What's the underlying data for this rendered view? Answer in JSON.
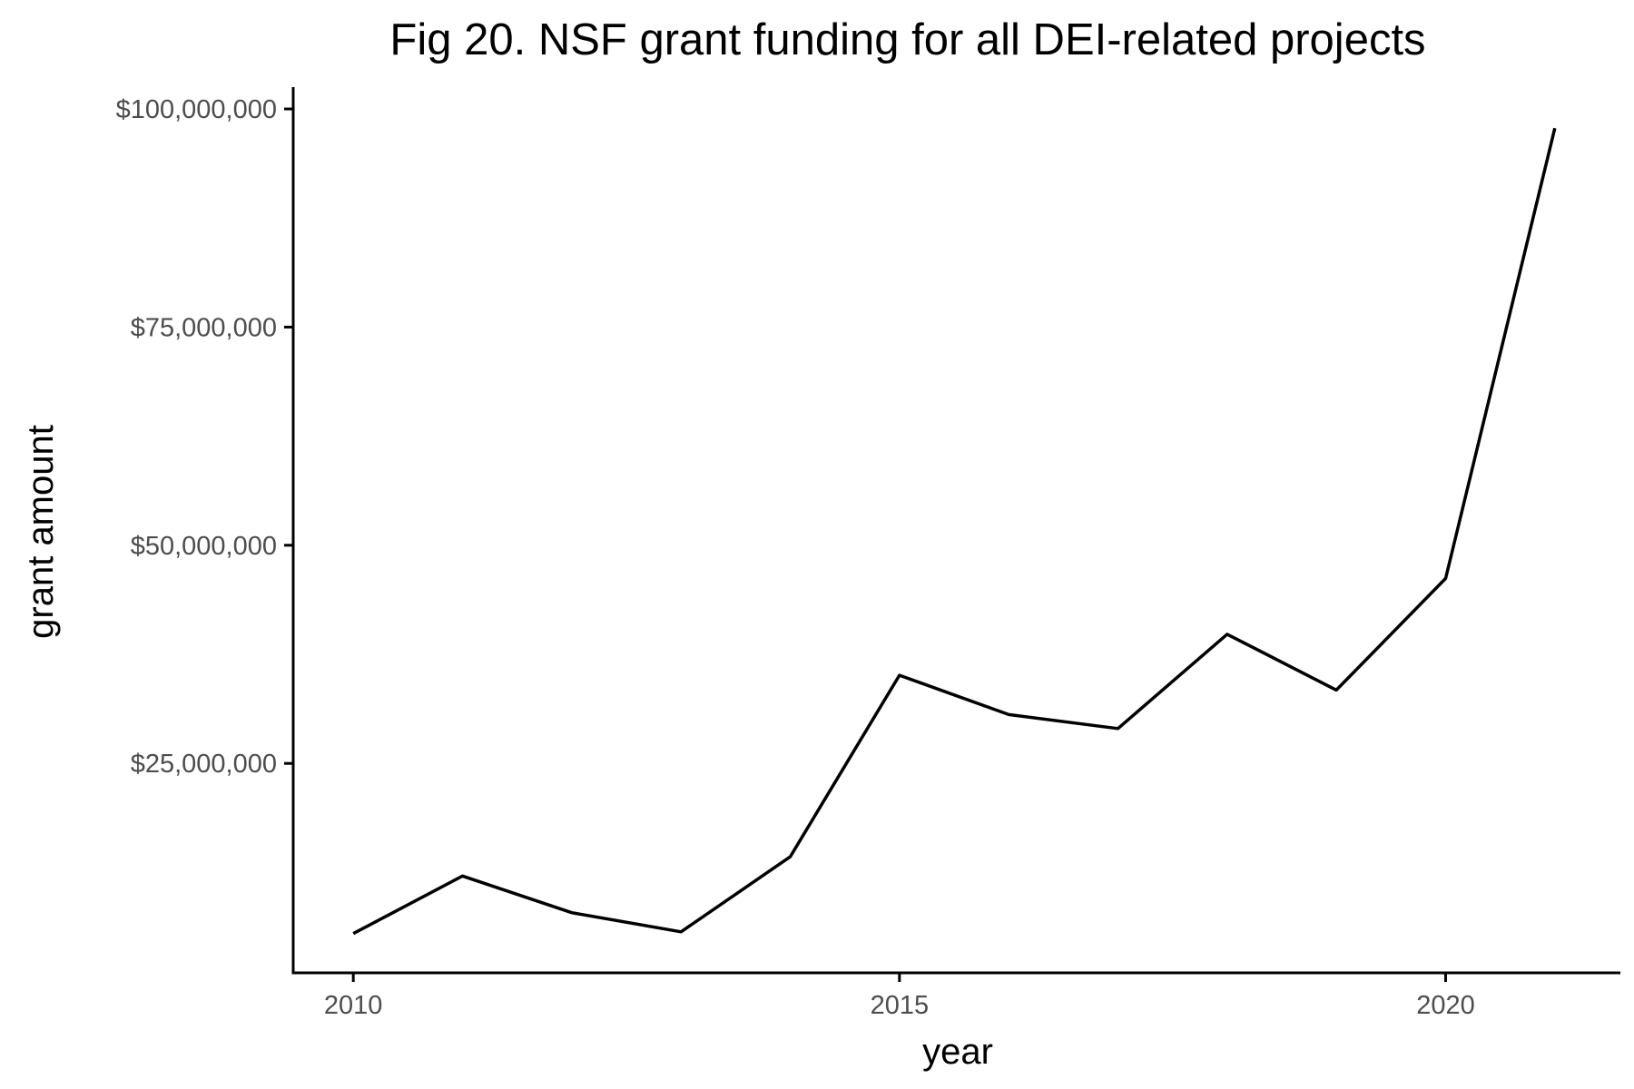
{
  "chart_data": {
    "type": "line",
    "title": "Fig 20. NSF grant funding for all DEI-related projects",
    "xlabel": "year",
    "ylabel": "grant amount",
    "x": [
      2010,
      2011,
      2012,
      2013,
      2014,
      2015,
      2016,
      2017,
      2018,
      2019,
      2020,
      2021
    ],
    "series": [
      {
        "values": [
          5500000,
          12100000,
          7900000,
          5700000,
          14300000,
          35100000,
          30600000,
          29000000,
          39800000,
          33400000,
          46200000,
          97800000
        ],
        "color": "#000000"
      }
    ],
    "xlim": [
      2009.45,
      2021.6
    ],
    "ylim": [
      1000000,
      102500000
    ],
    "xticks": [
      2010,
      2015,
      2020
    ],
    "xtick_labels": [
      "2010",
      "2015",
      "2020"
    ],
    "yticks": [
      25000000,
      50000000,
      75000000,
      100000000
    ],
    "ytick_labels": [
      "$25,000,000",
      "$50,000,000",
      "$75,000,000",
      "$100,000,000"
    ],
    "grid": false,
    "legend": "none"
  }
}
